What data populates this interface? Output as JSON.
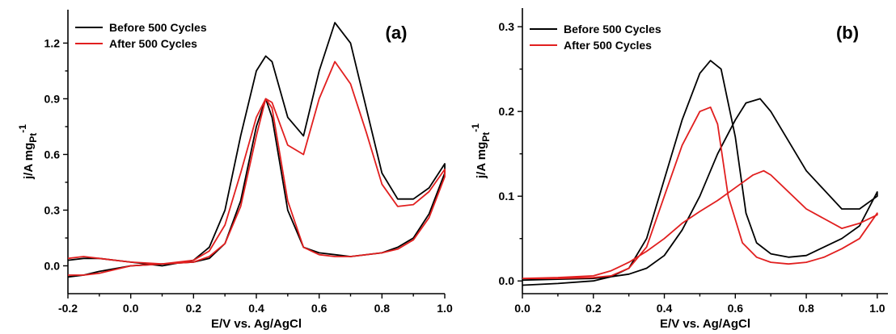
{
  "chart_data": [
    {
      "type": "line",
      "panel_label": "(a)",
      "xlabel": "E/V vs. Ag/AgCl",
      "ylabel_main": "j/A mg",
      "ylabel_sub": "Pt",
      "ylabel_sup": "-1",
      "xlim": [
        -0.2,
        1.0
      ],
      "ylim": [
        -0.15,
        1.38
      ],
      "xticks": [
        -0.2,
        0.0,
        0.2,
        0.4,
        0.6,
        0.8,
        1.0
      ],
      "xtick_labels": [
        "-0.2",
        "0.0",
        "0.2",
        "0.4",
        "0.6",
        "0.8",
        "1.0"
      ],
      "yticks": [
        0.0,
        0.3,
        0.6,
        0.9,
        1.2
      ],
      "ytick_labels": [
        "0.0",
        "0.3",
        "0.6",
        "0.9",
        "1.2"
      ],
      "legend_position": "top-left",
      "series": [
        {
          "name": "Before 500 Cycles",
          "color": "#000000",
          "x": [
            -0.2,
            -0.15,
            -0.1,
            0.0,
            0.1,
            0.2,
            0.25,
            0.3,
            0.35,
            0.4,
            0.43,
            0.45,
            0.5,
            0.55,
            0.6,
            0.65,
            0.7,
            0.75,
            0.8,
            0.85,
            0.9,
            0.95,
            1.0,
            1.0,
            0.95,
            0.9,
            0.85,
            0.8,
            0.7,
            0.65,
            0.6,
            0.55,
            0.5,
            0.48,
            0.45,
            0.43,
            0.4,
            0.35,
            0.3,
            0.25,
            0.2,
            0.1,
            0.0,
            -0.1,
            -0.15,
            -0.2
          ],
          "y": [
            0.03,
            0.04,
            0.04,
            0.02,
            0.0,
            0.03,
            0.1,
            0.3,
            0.7,
            1.05,
            1.13,
            1.1,
            0.8,
            0.7,
            1.05,
            1.31,
            1.2,
            0.85,
            0.5,
            0.36,
            0.36,
            0.42,
            0.55,
            0.5,
            0.28,
            0.15,
            0.1,
            0.07,
            0.05,
            0.06,
            0.07,
            0.1,
            0.3,
            0.5,
            0.8,
            0.9,
            0.75,
            0.35,
            0.12,
            0.04,
            0.02,
            0.01,
            0.0,
            -0.03,
            -0.05,
            -0.06
          ]
        },
        {
          "name": "After 500 Cycles",
          "color": "#e11f1f",
          "x": [
            -0.2,
            -0.15,
            -0.1,
            0.0,
            0.1,
            0.2,
            0.25,
            0.3,
            0.35,
            0.4,
            0.43,
            0.45,
            0.5,
            0.55,
            0.6,
            0.65,
            0.7,
            0.75,
            0.8,
            0.85,
            0.9,
            0.95,
            1.0,
            1.0,
            0.95,
            0.9,
            0.85,
            0.8,
            0.7,
            0.65,
            0.6,
            0.55,
            0.5,
            0.48,
            0.45,
            0.43,
            0.4,
            0.35,
            0.3,
            0.25,
            0.2,
            0.1,
            0.0,
            -0.1,
            -0.15,
            -0.2
          ],
          "y": [
            0.04,
            0.05,
            0.04,
            0.02,
            0.01,
            0.03,
            0.08,
            0.22,
            0.5,
            0.8,
            0.9,
            0.88,
            0.65,
            0.6,
            0.9,
            1.1,
            0.98,
            0.72,
            0.44,
            0.32,
            0.33,
            0.4,
            0.52,
            0.48,
            0.26,
            0.14,
            0.09,
            0.07,
            0.05,
            0.05,
            0.06,
            0.1,
            0.35,
            0.55,
            0.85,
            0.9,
            0.7,
            0.32,
            0.12,
            0.05,
            0.02,
            0.01,
            0.0,
            -0.04,
            -0.05,
            -0.05
          ]
        }
      ]
    },
    {
      "type": "line",
      "panel_label": "(b)",
      "xlabel": "E/V vs. Ag/AgCl",
      "ylabel_main": "j/A mg",
      "ylabel_sub": "Pt",
      "ylabel_sup": "-1",
      "xlim": [
        0.0,
        1.03
      ],
      "ylim": [
        -0.015,
        0.322
      ],
      "xticks": [
        0.0,
        0.2,
        0.4,
        0.6,
        0.8,
        1.0
      ],
      "xtick_labels": [
        "0.0",
        "0.2",
        "0.4",
        "0.6",
        "0.8",
        "1.0"
      ],
      "yticks": [
        0.0,
        0.1,
        0.2,
        0.3
      ],
      "ytick_labels": [
        "0.0",
        "0.1",
        "0.2",
        "0.3"
      ],
      "legend_position": "top-left",
      "series": [
        {
          "name": "Before 500 Cycles",
          "color": "#000000",
          "x": [
            0.0,
            0.1,
            0.2,
            0.25,
            0.3,
            0.35,
            0.4,
            0.45,
            0.5,
            0.53,
            0.56,
            0.6,
            0.63,
            0.66,
            0.7,
            0.75,
            0.8,
            0.85,
            0.9,
            0.95,
            1.0,
            1.0,
            0.95,
            0.9,
            0.8,
            0.7,
            0.67,
            0.63,
            0.6,
            0.55,
            0.5,
            0.45,
            0.4,
            0.35,
            0.3,
            0.25,
            0.2,
            0.1,
            0.0
          ],
          "y": [
            -0.005,
            -0.003,
            0.0,
            0.005,
            0.015,
            0.05,
            0.12,
            0.19,
            0.245,
            0.26,
            0.25,
            0.17,
            0.08,
            0.045,
            0.032,
            0.028,
            0.03,
            0.04,
            0.05,
            0.065,
            0.105,
            0.1,
            0.085,
            0.085,
            0.13,
            0.2,
            0.215,
            0.21,
            0.19,
            0.15,
            0.1,
            0.06,
            0.03,
            0.015,
            0.008,
            0.005,
            0.003,
            0.002,
            0.001
          ]
        },
        {
          "name": "After 500 Cycles",
          "color": "#e11f1f",
          "x": [
            0.0,
            0.1,
            0.2,
            0.25,
            0.3,
            0.35,
            0.4,
            0.45,
            0.5,
            0.53,
            0.55,
            0.58,
            0.62,
            0.66,
            0.7,
            0.75,
            0.8,
            0.85,
            0.9,
            0.95,
            1.0,
            1.0,
            0.95,
            0.9,
            0.8,
            0.7,
            0.68,
            0.65,
            0.6,
            0.55,
            0.5,
            0.45,
            0.4,
            0.35,
            0.3,
            0.25,
            0.2,
            0.1,
            0.0
          ],
          "y": [
            0.003,
            0.003,
            0.004,
            0.006,
            0.015,
            0.04,
            0.1,
            0.16,
            0.2,
            0.205,
            0.185,
            0.1,
            0.045,
            0.028,
            0.022,
            0.02,
            0.022,
            0.028,
            0.038,
            0.05,
            0.08,
            0.078,
            0.068,
            0.062,
            0.085,
            0.125,
            0.13,
            0.125,
            0.11,
            0.095,
            0.082,
            0.068,
            0.05,
            0.035,
            0.022,
            0.012,
            0.006,
            0.004,
            0.003
          ]
        }
      ]
    }
  ]
}
